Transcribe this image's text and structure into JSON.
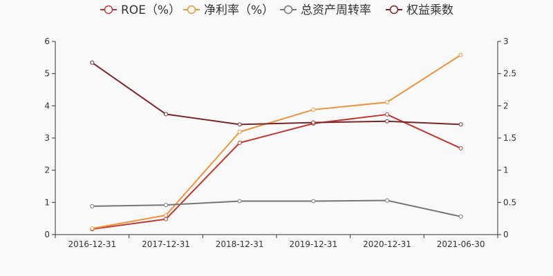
{
  "chart_data": {
    "type": "line",
    "categories": [
      "2016-12-31",
      "2017-12-31",
      "2018-12-31",
      "2019-12-31",
      "2020-12-31",
      "2021-06-30"
    ],
    "series": [
      {
        "name": "ROE（%）",
        "axis": "left",
        "color": "#c23531",
        "values": [
          0.17,
          0.48,
          2.85,
          3.45,
          3.73,
          2.68
        ]
      },
      {
        "name": "净利率（%）",
        "axis": "left",
        "color": "#f0923a",
        "values": [
          0.19,
          0.6,
          3.19,
          3.88,
          4.11,
          5.58
        ]
      },
      {
        "name": "总资产周转率",
        "axis": "right",
        "color": "#757575",
        "values": [
          0.44,
          0.46,
          0.52,
          0.52,
          0.53,
          0.28
        ]
      },
      {
        "name": "权益乘数",
        "axis": "right",
        "color": "#7b2626",
        "values": [
          2.67,
          1.87,
          1.71,
          1.74,
          1.76,
          1.71
        ]
      }
    ],
    "y_left": {
      "min": 0,
      "max": 6,
      "ticks": [
        "0",
        "1",
        "2",
        "3",
        "4",
        "5",
        "6"
      ]
    },
    "y_right": {
      "min": 0,
      "max": 3,
      "ticks": [
        "0",
        "0.5",
        "1",
        "1.5",
        "2",
        "2.5",
        "3"
      ]
    },
    "legend_position": "top-center",
    "grid": false
  }
}
